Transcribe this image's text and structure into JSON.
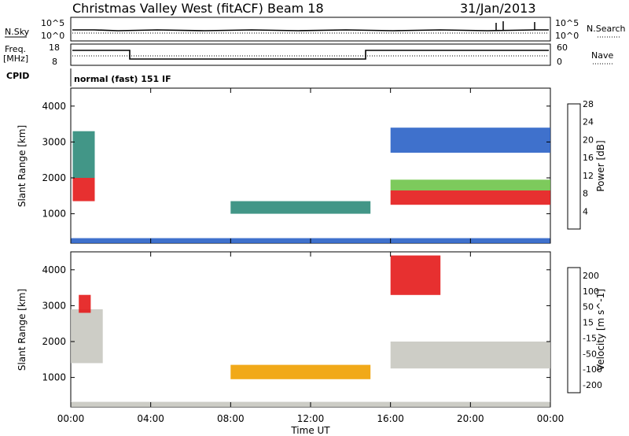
{
  "header": {
    "title": "Christmas Valley West (fitACF)",
    "beam": "Beam 18",
    "date": "31/Jan/2013"
  },
  "status_panels": {
    "nsky_label": "N.Sky",
    "nsearch_label": "N.Search",
    "freq_label_line1": "Freq.",
    "freq_label_line2": "[MHz]",
    "nave_label": "Nave",
    "cpid_label": "CPID",
    "cpid_text": "normal (fast) 151 IF",
    "noise_left_ticks": [
      "10^5",
      "10^0"
    ],
    "noise_right_ticks": [
      "10^5",
      "10^0"
    ],
    "freq_left_ticks": [
      "18",
      "8"
    ],
    "nave_right_ticks": [
      "60",
      "0"
    ]
  },
  "power_scale": {
    "label": "Power [dB]",
    "ticks": [
      "4",
      "8",
      "12",
      "16",
      "20",
      "24",
      "28"
    ],
    "colors": [
      "#1a1ad0",
      "#2a62c6",
      "#2e8b7a",
      "#6fc44a",
      "#f4b400",
      "#f07a00",
      "#e41a1a"
    ]
  },
  "velocity_scale": {
    "label": "Velocity [m s^-1]",
    "ticks": [
      "200",
      "100",
      "50",
      "15",
      "-15",
      "-50",
      "-100",
      "-200"
    ],
    "colors": [
      "#1e3aa8",
      "#2e7a5a",
      "#49b53a",
      "#9be35a",
      "#c8c8c0",
      "#f0a000",
      "#f06000",
      "#e41a1a"
    ]
  },
  "chart_data": [
    {
      "type": "heatmap",
      "title": "Power",
      "xlabel": "Time UT",
      "ylabel": "Slant Range [km]",
      "xlim": [
        "00:00",
        "24:00"
      ],
      "ylim": [
        180,
        4500
      ],
      "x_ticks": [
        "00:00",
        "04:00",
        "08:00",
        "12:00",
        "16:00",
        "20:00",
        "00:00"
      ],
      "y_ticks": [
        1000,
        2000,
        3000,
        4000
      ],
      "regions": [
        {
          "x_start_h": 0.1,
          "x_end_h": 1.2,
          "range_low_km": 1350,
          "range_high_km": 2000,
          "value_db": 26
        },
        {
          "x_start_h": 0.1,
          "x_end_h": 1.2,
          "range_low_km": 2000,
          "range_high_km": 3300,
          "value_db": 14
        },
        {
          "x_start_h": 8.0,
          "x_end_h": 15.0,
          "range_low_km": 1000,
          "range_high_km": 1350,
          "value_db": 14
        },
        {
          "x_start_h": 16.0,
          "x_end_h": 24.0,
          "range_low_km": 1250,
          "range_high_km": 1650,
          "value_db": 28
        },
        {
          "x_start_h": 16.0,
          "x_end_h": 24.0,
          "range_low_km": 1650,
          "range_high_km": 1950,
          "value_db": 16
        },
        {
          "x_start_h": 16.0,
          "x_end_h": 24.0,
          "range_low_km": 2700,
          "range_high_km": 3400,
          "value_db": 8
        },
        {
          "x_start_h": 0.0,
          "x_end_h": 24.0,
          "range_low_km": 180,
          "range_high_km": 320,
          "value_db": 10
        }
      ]
    },
    {
      "type": "heatmap",
      "title": "Velocity",
      "xlabel": "Time UT",
      "ylabel": "Slant Range [km]",
      "xlim": [
        "00:00",
        "24:00"
      ],
      "ylim": [
        180,
        4500
      ],
      "x_ticks": [
        "00:00",
        "04:00",
        "08:00",
        "12:00",
        "16:00",
        "20:00",
        "00:00"
      ],
      "y_ticks": [
        1000,
        2000,
        3000,
        4000
      ],
      "regions": [
        {
          "x_start_h": 0.0,
          "x_end_h": 1.6,
          "range_low_km": 1400,
          "range_high_km": 2900,
          "value_ms": 0
        },
        {
          "x_start_h": 0.4,
          "x_end_h": 1.0,
          "range_low_km": 2800,
          "range_high_km": 3300,
          "value_ms": -200
        },
        {
          "x_start_h": 8.0,
          "x_end_h": 15.0,
          "range_low_km": 950,
          "range_high_km": 1350,
          "value_ms": -60
        },
        {
          "x_start_h": 16.0,
          "x_end_h": 24.0,
          "range_low_km": 1250,
          "range_high_km": 2000,
          "value_ms": 0
        },
        {
          "x_start_h": 16.0,
          "x_end_h": 18.5,
          "range_low_km": 3300,
          "range_high_km": 4400,
          "value_ms": -150
        },
        {
          "x_start_h": 0.0,
          "x_end_h": 24.0,
          "range_low_km": 180,
          "range_high_km": 320,
          "value_ms": -40
        }
      ]
    }
  ]
}
